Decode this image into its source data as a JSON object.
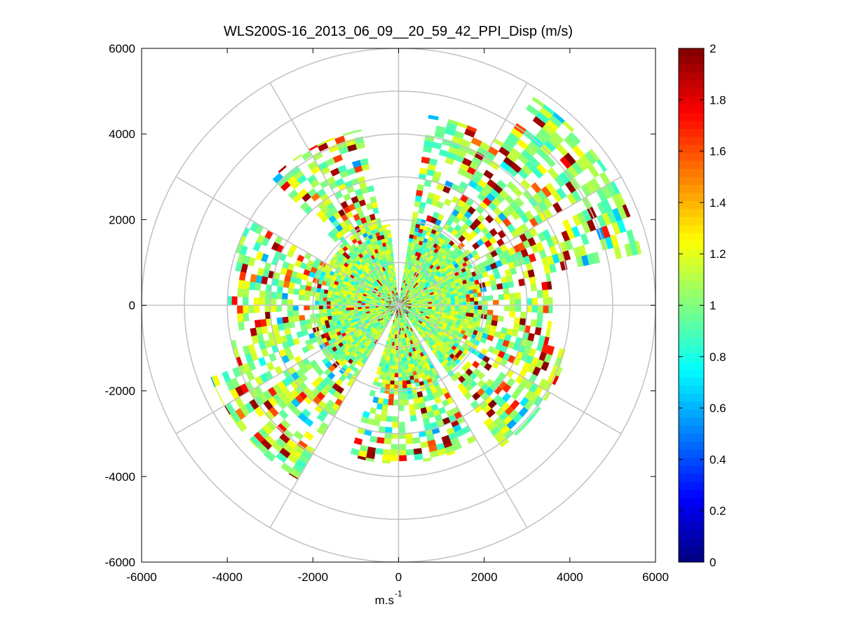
{
  "chart_data": {
    "type": "polar-ppi-heatmap",
    "title": "WLS200S-16_2013_06_09__20_59_42_PPI_Disp (m/s)",
    "xlabel": "m.s",
    "xlabel_superscript": "-1",
    "ylabel": "",
    "xlim": [
      -6000,
      6000
    ],
    "ylim": [
      -6000,
      6000
    ],
    "xticks": [
      -6000,
      -4000,
      -2000,
      0,
      2000,
      4000,
      6000
    ],
    "yticks": [
      6000,
      4000,
      2000,
      0,
      -2000,
      -4000,
      -6000
    ],
    "xtick_labels": [
      "-6000",
      "-4000",
      "-2000",
      "0",
      "2000",
      "4000",
      "6000"
    ],
    "ytick_labels": [
      "6000",
      "4000",
      "2000",
      "0",
      "-2000",
      "-4000",
      "-6000"
    ],
    "polar_grid": {
      "rings": [
        1000,
        2000,
        3000,
        4000,
        5000,
        6000
      ],
      "spokes_deg": [
        0,
        30,
        60,
        90,
        120,
        150,
        180,
        210,
        240,
        270,
        300,
        330
      ]
    },
    "colorbar": {
      "min": 0,
      "max": 2,
      "ticks": [
        0,
        0.2,
        0.4,
        0.6,
        0.8,
        1,
        1.2,
        1.4,
        1.6,
        1.8,
        2
      ],
      "tick_labels": [
        "0",
        "0.2",
        "0.4",
        "0.6",
        "0.8",
        "1",
        "1.2",
        "1.4",
        "1.6",
        "1.8",
        "2"
      ],
      "colormap": "jet"
    },
    "scan": {
      "inner_dense_radius": 1900,
      "dense_value_range": [
        0.85,
        1.25
      ],
      "gaps_deg": [
        [
          80,
          95
        ],
        [
          240,
          250
        ],
        [
          300,
          305
        ]
      ],
      "outer_sectors": [
        {
          "from_deg": 100,
          "to_deg": 135,
          "max_range": 4200
        },
        {
          "from_deg": 10,
          "to_deg": 55,
          "max_range": 5800
        },
        {
          "from_deg": 55,
          "to_deg": 80,
          "max_range": 4500
        },
        {
          "from_deg": 150,
          "to_deg": 200,
          "max_range": 4000
        },
        {
          "from_deg": 200,
          "to_deg": 240,
          "max_range": 4700
        },
        {
          "from_deg": 250,
          "to_deg": 300,
          "max_range": 3700
        },
        {
          "from_deg": 305,
          "to_deg": 345,
          "max_range": 4100
        },
        {
          "from_deg": 345,
          "to_deg": 370,
          "max_range": 3600
        }
      ]
    }
  }
}
